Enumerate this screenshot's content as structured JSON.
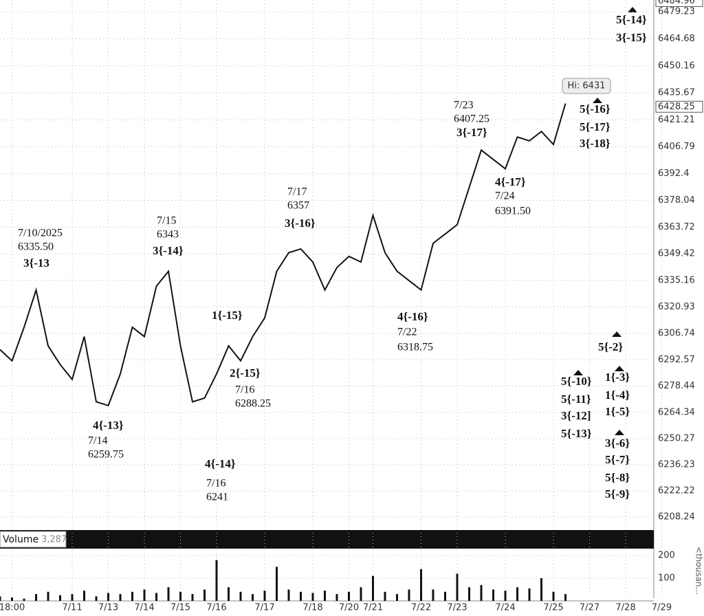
{
  "chart_data": [
    {
      "type": "line",
      "color": "#111111",
      "grid": true,
      "x": [
        null,
        "18:00",
        null,
        null,
        null,
        null,
        "7/11",
        null,
        null,
        "7/13",
        null,
        null,
        "7/14",
        null,
        null,
        "7/15",
        null,
        null,
        "7/16",
        null,
        null,
        null,
        "7/17",
        null,
        null,
        null,
        "7/18",
        null,
        null,
        "7/20",
        null,
        "7/21",
        null,
        null,
        null,
        "7/22",
        null,
        null,
        "7/23",
        null,
        null,
        null,
        "7/24",
        null,
        null,
        null,
        "7/25",
        null,
        null,
        "7/27",
        null,
        null,
        "7/28",
        null,
        null,
        "7/29"
      ],
      "values": [
        6298,
        6292,
        6310,
        6330,
        6300,
        6290,
        6282,
        6305,
        6270,
        6268,
        6285,
        6310,
        6305,
        6332,
        6340,
        6300,
        6270,
        6272,
        6285,
        6300,
        6292,
        6305,
        6315,
        6340,
        6350,
        6352,
        6345,
        6330,
        6342,
        6348,
        6345,
        6370,
        6350,
        6340,
        6335,
        6330,
        6355,
        6360,
        6365,
        6385,
        6405,
        6400,
        6395,
        6412,
        6410,
        6415,
        6408,
        6430,
        null,
        null,
        null,
        null,
        null,
        null,
        null,
        null
      ],
      "ylim": [
        6201.6,
        6485.5
      ],
      "yticks": [
        6479.23,
        6464.68,
        6450.16,
        6435.67,
        6421.21,
        6406.79,
        6392.4,
        6378.04,
        6363.72,
        6349.42,
        6335.16,
        6320.93,
        6306.74,
        6292.57,
        6278.44,
        6264.34,
        6250.27,
        6236.23,
        6222.22,
        6208.24
      ],
      "axis_high": 6484.96,
      "last_price": 6428.25,
      "high_callout": "Hi: 6431",
      "annotations": [
        "7/10/2025",
        "6335.50",
        "3{-13",
        "7/14",
        "6259.75",
        "4{-13}",
        "7/15",
        "6343",
        "3{-14}",
        "4{-14}",
        "7/16",
        "6241",
        "1{-15}",
        "2{-15}",
        "7/16",
        "6288.25",
        "7/17",
        "6357",
        "3{-16}",
        "4{-16}",
        "7/22",
        "6318.75",
        "7/23",
        "6407.25",
        "3{-17}",
        "4{-17}",
        "7/24",
        "6391.50",
        "5{-14}",
        "3{-15}",
        "5{-16}",
        "5{-17}",
        "3{-18}",
        "5{-2}",
        "5{-10}",
        "5{-11}",
        "3{-12]",
        "5{-13}",
        "1{-3}",
        "1{-4}",
        "1{-5}",
        "3{-6}",
        "5{-7}",
        "5{-8}",
        "5{-9}"
      ]
    },
    {
      "type": "bar",
      "title": "Volume",
      "current": "3,287",
      "unit": "<thousan...",
      "color": "#111111",
      "values": [
        20,
        15,
        10,
        30,
        40,
        25,
        30,
        45,
        20,
        35,
        30,
        40,
        50,
        35,
        60,
        40,
        30,
        50,
        180,
        60,
        40,
        30,
        45,
        150,
        50,
        40,
        35,
        45,
        30,
        40,
        60,
        110,
        40,
        30,
        50,
        140,
        50,
        40,
        120,
        60,
        70,
        50,
        45,
        60,
        55,
        100,
        40,
        30,
        null,
        null,
        null,
        null,
        null,
        null,
        null,
        null
      ],
      "ylim": [
        0,
        200
      ],
      "yticks": [
        100,
        200
      ]
    }
  ]
}
